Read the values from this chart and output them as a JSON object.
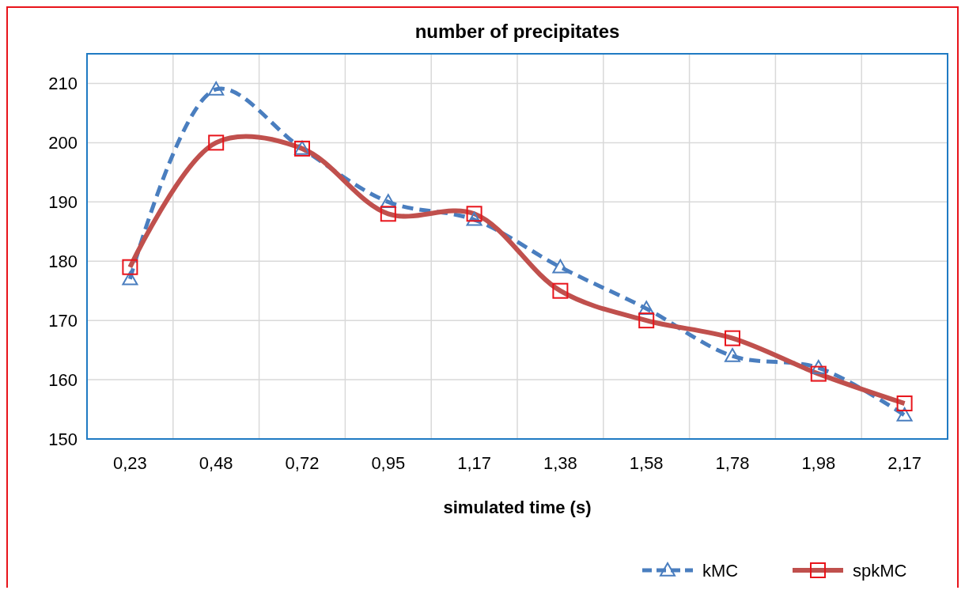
{
  "chart_data": {
    "type": "line",
    "title": "number of precipitates",
    "xlabel": "simulated time (s)",
    "categories": [
      "0,23",
      "0,48",
      "0,72",
      "0,95",
      "1,17",
      "1,38",
      "1,58",
      "1,78",
      "1,98",
      "2,17"
    ],
    "series": [
      {
        "name": "kMC",
        "color": "#4a7ebf",
        "line_style": "dashed",
        "marker": "triangle",
        "values": [
          177,
          209,
          199,
          190,
          187,
          179,
          172,
          164,
          162,
          154
        ]
      },
      {
        "name": "spkMC",
        "color": "#c0504d",
        "line_style": "solid",
        "marker": "square",
        "values": [
          179,
          200,
          199,
          188,
          188,
          175,
          170,
          167,
          161,
          156
        ]
      }
    ],
    "ylim": [
      150,
      215
    ],
    "yticks": [
      150,
      160,
      170,
      180,
      190,
      200,
      210
    ],
    "grid": true,
    "legend": "bottom right"
  }
}
